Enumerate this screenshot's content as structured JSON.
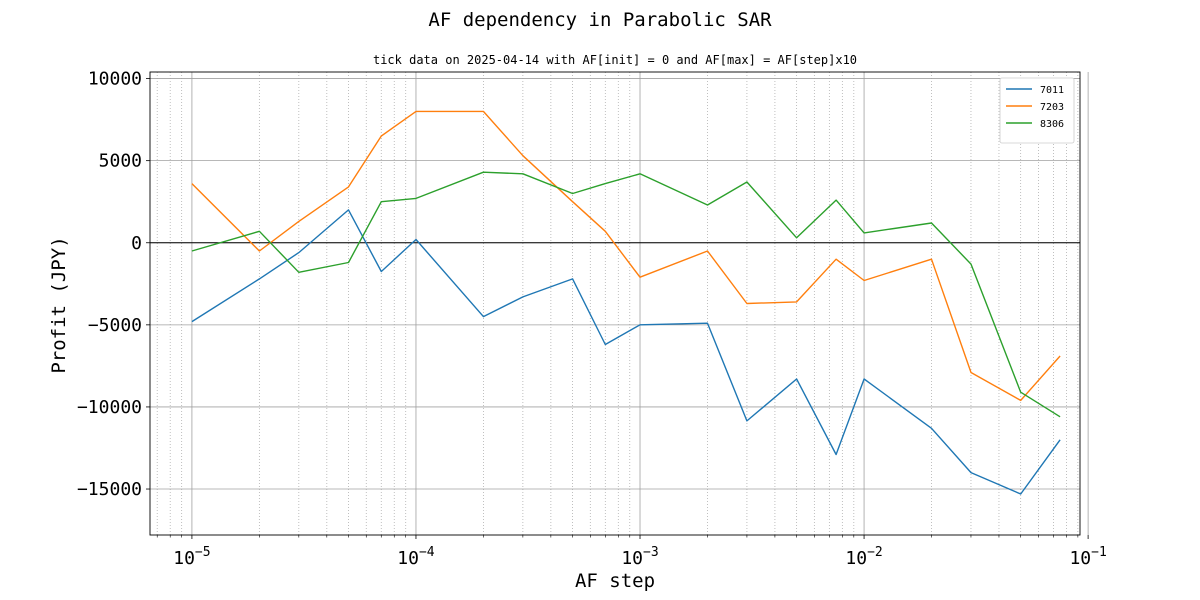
{
  "chart_data": {
    "type": "line",
    "title": "AF dependency in Parabolic SAR",
    "subtitle": "tick data on 2025-04-14 with AF[init] = 0 and AF[max] = AF[step]x10",
    "xlabel": "AF step",
    "ylabel": "Profit (JPY)",
    "xscale": "log",
    "xlim": [
      6.5e-06,
      0.092
    ],
    "ylim": [
      -17800,
      10400
    ],
    "x_ticks": [
      {
        "value": 1e-05,
        "base": "10",
        "exp": "−5"
      },
      {
        "value": 0.0001,
        "base": "10",
        "exp": "−4"
      },
      {
        "value": 0.001,
        "base": "10",
        "exp": "−3"
      },
      {
        "value": 0.01,
        "base": "10",
        "exp": "−2"
      },
      {
        "value": 0.1,
        "base": "10",
        "exp": "−1"
      }
    ],
    "y_ticks": [
      {
        "value": 10000,
        "label": "10000"
      },
      {
        "value": 5000,
        "label": "5000"
      },
      {
        "value": 0,
        "label": "0"
      },
      {
        "value": -5000,
        "label": "−5000"
      },
      {
        "value": -10000,
        "label": "−10000"
      },
      {
        "value": -15000,
        "label": "−15000"
      }
    ],
    "grid": true,
    "zero_line": true,
    "legend_position": "top-right",
    "x": [
      1e-05,
      2e-05,
      3e-05,
      5e-05,
      7e-05,
      0.0001,
      0.0002,
      0.0003,
      0.0005,
      0.0007,
      0.001,
      0.002,
      0.003,
      0.005,
      0.0075,
      0.01,
      0.02,
      0.03,
      0.05,
      0.075
    ],
    "series": [
      {
        "name": "7011",
        "color": "#1f77b4",
        "values": [
          -4800,
          -2200,
          -600,
          2000,
          -1750,
          200,
          -4500,
          -3300,
          -2200,
          -6200,
          -5000,
          -4900,
          -10850,
          -8300,
          -12900,
          -8300,
          -11300,
          -14000,
          -15300,
          -12000
        ]
      },
      {
        "name": "7203",
        "color": "#ff7f0e",
        "values": [
          3600,
          -500,
          1300,
          3400,
          6500,
          8000,
          8000,
          5300,
          2500,
          700,
          -2100,
          -500,
          -3700,
          -3600,
          -1000,
          -2300,
          -1000,
          -7900,
          -9600,
          -6900
        ]
      },
      {
        "name": "8306",
        "color": "#2ca02c",
        "values": [
          -500,
          700,
          -1800,
          -1200,
          2500,
          2700,
          4300,
          4200,
          3000,
          3600,
          4200,
          2300,
          3700,
          300,
          2600,
          600,
          1200,
          -1300,
          -9100,
          -10600
        ]
      }
    ]
  }
}
